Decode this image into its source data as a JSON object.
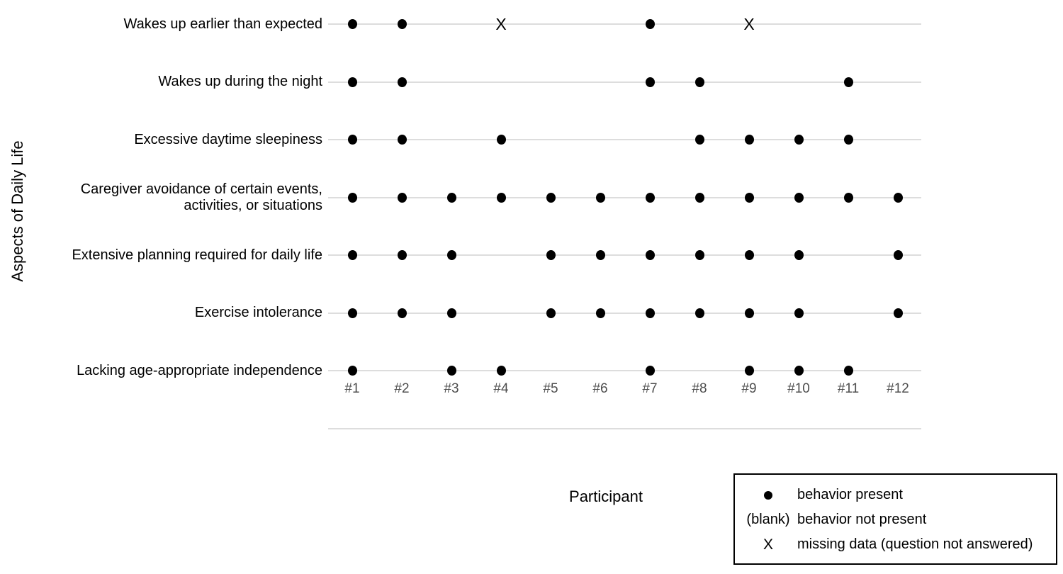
{
  "chart_data": {
    "type": "scatter",
    "subtype": "presence-dot-matrix",
    "title": "",
    "xlabel": "Participant",
    "ylabel": "Aspects of Daily Life",
    "x_categories": [
      "#1",
      "#2",
      "#3",
      "#4",
      "#5",
      "#6",
      "#7",
      "#8",
      "#9",
      "#10",
      "#11",
      "#12"
    ],
    "rows": [
      {
        "label": "Wakes up earlier than expected",
        "label_lines": [
          "Wakes up earlier than expected"
        ],
        "present": [
          1,
          2,
          7
        ],
        "missing": [
          4,
          9
        ]
      },
      {
        "label": "Wakes up during the night",
        "label_lines": [
          "Wakes up during the night"
        ],
        "present": [
          1,
          2,
          7,
          8,
          11
        ],
        "missing": []
      },
      {
        "label": "Excessive daytime sleepiness",
        "label_lines": [
          "Excessive daytime sleepiness"
        ],
        "present": [
          1,
          2,
          4,
          8,
          9,
          10,
          11
        ],
        "missing": []
      },
      {
        "label": "Caregiver avoidance of certain events, activities, or situations",
        "label_lines": [
          "Caregiver avoidance of certain events,",
          "activities, or situations"
        ],
        "present": [
          1,
          2,
          3,
          4,
          5,
          6,
          7,
          8,
          9,
          10,
          11,
          12
        ],
        "missing": []
      },
      {
        "label": "Extensive planning required for daily life",
        "label_lines": [
          "Extensive planning required for daily life"
        ],
        "present": [
          1,
          2,
          3,
          5,
          6,
          7,
          8,
          9,
          10,
          12
        ],
        "missing": []
      },
      {
        "label": "Exercise intolerance",
        "label_lines": [
          "Exercise intolerance"
        ],
        "present": [
          1,
          2,
          3,
          5,
          6,
          7,
          8,
          9,
          10,
          12
        ],
        "missing": []
      },
      {
        "label": "Lacking age-appropriate independence",
        "label_lines": [
          "Lacking age-appropriate independence"
        ],
        "present": [
          1,
          3,
          4,
          7,
          9,
          10,
          11
        ],
        "missing": []
      }
    ],
    "legend": {
      "position": "bottom-right",
      "entries": [
        {
          "symbol": "dot",
          "label": "behavior present"
        },
        {
          "symbol": "(blank)",
          "label": "behavior not present"
        },
        {
          "symbol": "X",
          "label": "missing data (question not answered)"
        }
      ]
    },
    "grid": "horizontal-lines-only",
    "colors": {
      "marker": "#000000",
      "gridline": "#dddddd",
      "tick_label": "#4d4d4d",
      "text": "#000000",
      "background": "#ffffff"
    }
  }
}
